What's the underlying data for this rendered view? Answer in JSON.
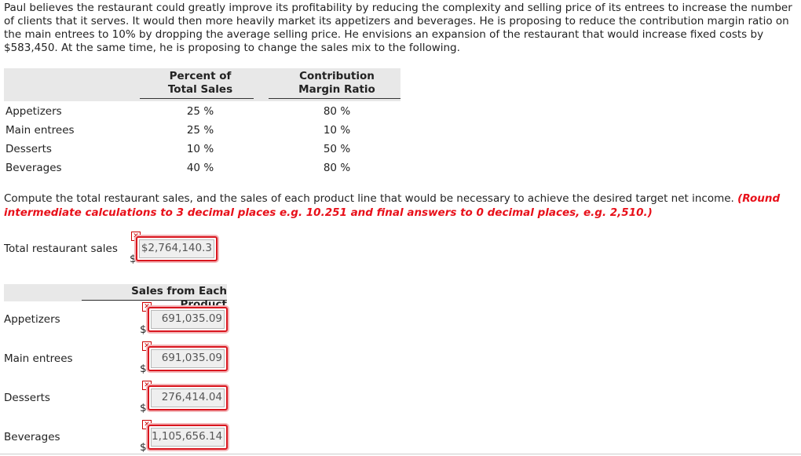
{
  "problem": {
    "text": "Paul believes the restaurant could greatly improve its profitability by reducing the complexity and selling price of its entrees to increase the number of clients that it serves. It would then more heavily market its appetizers and beverages. He is proposing to reduce the contribution margin ratio on the main entrees to 10% by dropping the average selling price. He envisions an expansion of the restaurant that would increase fixed costs by $583,450. At the same time, he is proposing to change the sales mix to the following."
  },
  "mix_table": {
    "col1_header": [
      "Percent of",
      "Total Sales"
    ],
    "col2_header": [
      "Contribution",
      "Margin Ratio"
    ],
    "rows": [
      {
        "label": "Appetizers",
        "percent": "25 %",
        "cm_ratio": "80 %"
      },
      {
        "label": "Main entrees",
        "percent": "25 %",
        "cm_ratio": "10 %"
      },
      {
        "label": "Desserts",
        "percent": "10 %",
        "cm_ratio": "50 %"
      },
      {
        "label": "Beverages",
        "percent": "40 %",
        "cm_ratio": "80 %"
      }
    ]
  },
  "instruction": {
    "text": "Compute the total restaurant sales, and the sales of each product line that would be necessary to achieve the desired target net income. ",
    "note": "(Round intermediate calculations to 3 decimal places e.g. 10.251 and final answers to 0 decimal places, e.g. 2,510.)"
  },
  "total_sales": {
    "label": "Total restaurant sales",
    "currency": "$",
    "value": "$2,764,140.3",
    "status": "incorrect"
  },
  "product_sales": {
    "header": "Sales from Each Product",
    "rows": [
      {
        "label": "Appetizers",
        "currency": "$",
        "value": "691,035.09",
        "status": "incorrect"
      },
      {
        "label": "Main entrees",
        "currency": "$",
        "value": "691,035.09",
        "status": "incorrect"
      },
      {
        "label": "Desserts",
        "currency": "$",
        "value": "276,414.04",
        "status": "incorrect"
      },
      {
        "label": "Beverages",
        "currency": "$",
        "value": "1,105,656.14",
        "status": "incorrect"
      }
    ]
  },
  "icons": {
    "incorrect_marker": "x-error-icon"
  },
  "colors": {
    "error_red": "#d9161f",
    "note_red": "#e8101a",
    "header_band": "#e8e8e8"
  }
}
